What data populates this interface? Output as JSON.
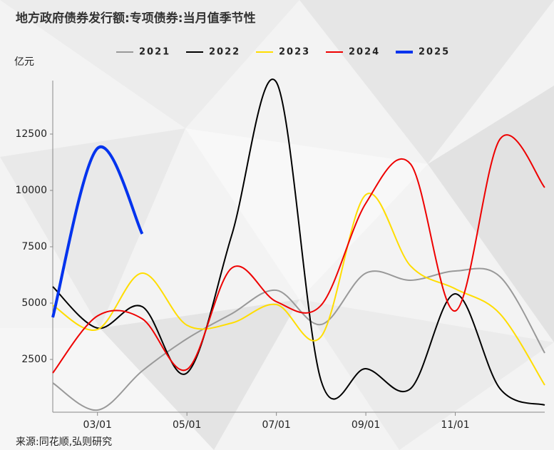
{
  "chart_data": {
    "type": "line",
    "title": "地方政府债券发行额:专项债券:当月值季节性",
    "y_label": "亿元",
    "source": "来源:同花顺,弘则研究",
    "categories": [
      null,
      "03/01",
      null,
      "05/01",
      null,
      "07/01",
      null,
      "09/01",
      null,
      "11/01",
      null,
      null
    ],
    "ylim": [
      0,
      15000
    ],
    "yticks": [
      2500,
      5000,
      7500,
      10000,
      12500
    ],
    "grid": false,
    "legend": "top",
    "series": [
      {
        "name": "2021",
        "color": "#999999",
        "values": [
          1456,
          253,
          1990,
          3418,
          4525,
          5570,
          4050,
          6330,
          6013,
          6424,
          6171,
          2785
        ]
      },
      {
        "name": "2022",
        "color": "#000000",
        "values": [
          5728,
          3892,
          4842,
          1899,
          8006,
          14800,
          1551,
          2089,
          1203,
          5411,
          1203,
          475
        ]
      },
      {
        "name": "2023",
        "color": "#ffdd00",
        "values": [
          4905,
          3829,
          6329,
          4019,
          4114,
          4937,
          3513,
          9810,
          6646,
          5633,
          4525,
          1361
        ]
      },
      {
        "name": "2024",
        "color": "#ee0000",
        "values": [
          1899,
          4430,
          4304,
          2057,
          6551,
          5063,
          4905,
          9430,
          11171,
          4652,
          12278,
          10127
        ]
      },
      {
        "name": "2025",
        "color": "#0033ee",
        "values": [
          4367,
          11867,
          8070,
          null,
          null,
          null,
          null,
          null,
          null,
          null,
          null,
          null
        ]
      }
    ]
  }
}
